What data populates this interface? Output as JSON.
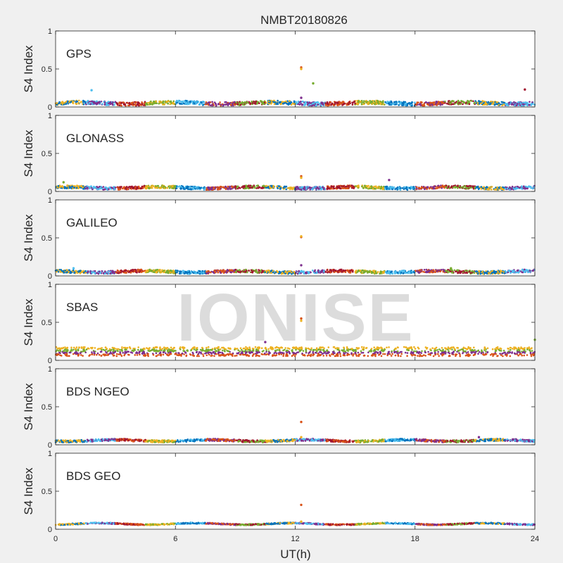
{
  "figure": {
    "title": "NMBT20180826",
    "watermark": "IONISE",
    "xlabel": "UT(h)",
    "xticks": [
      0,
      6,
      12,
      18,
      24
    ],
    "xlim": [
      0,
      24
    ],
    "colors": [
      "#0072BD",
      "#D95319",
      "#EDB120",
      "#7E2F8E",
      "#77AC30",
      "#4DBEEE",
      "#A2142F"
    ]
  },
  "chart_data": [
    {
      "type": "scatter",
      "label": "GPS",
      "ylabel": "S4 Index",
      "ylim": [
        0,
        1
      ],
      "yticks": [
        0,
        0.5,
        1
      ],
      "ytick_labels": [
        "0",
        "0.5",
        "1"
      ],
      "baseline": 0.05,
      "noise": 0.025,
      "outliers": [
        {
          "x": 12.3,
          "y": 0.52
        },
        {
          "x": 12.3,
          "y": 0.5
        },
        {
          "x": 12.3,
          "y": 0.12
        },
        {
          "x": 12.9,
          "y": 0.31
        },
        {
          "x": 1.8,
          "y": 0.22
        },
        {
          "x": 23.5,
          "y": 0.23
        }
      ]
    },
    {
      "type": "scatter",
      "label": "GLONASS",
      "ylabel": "S4 Index",
      "ylim": [
        0,
        1
      ],
      "yticks": [
        0,
        0.5,
        1
      ],
      "ytick_labels": [
        "0",
        "0.5",
        "1"
      ],
      "baseline": 0.05,
      "noise": 0.02,
      "outliers": [
        {
          "x": 12.3,
          "y": 0.2
        },
        {
          "x": 12.3,
          "y": 0.18
        },
        {
          "x": 16.7,
          "y": 0.15
        },
        {
          "x": 0.4,
          "y": 0.12
        }
      ]
    },
    {
      "type": "scatter",
      "label": "GALILEO",
      "ylabel": "S4 Index",
      "ylim": [
        0,
        1
      ],
      "yticks": [
        0,
        0.5,
        1
      ],
      "ytick_labels": [
        "0",
        "0.5",
        "1"
      ],
      "baseline": 0.055,
      "noise": 0.02,
      "outliers": [
        {
          "x": 12.3,
          "y": 0.51
        },
        {
          "x": 12.3,
          "y": 0.52
        },
        {
          "x": 12.3,
          "y": 0.14
        },
        {
          "x": 19.8,
          "y": 0.1
        },
        {
          "x": 0.9,
          "y": 0.1
        }
      ]
    },
    {
      "type": "scatter",
      "label": "SBAS",
      "ylabel": "S4 Index",
      "ylim": [
        0,
        1
      ],
      "yticks": [
        0,
        0.5,
        1
      ],
      "ytick_labels": [
        "0",
        "0.5",
        "1"
      ],
      "series_levels": [
        0.07,
        0.1,
        0.13,
        0.16
      ],
      "noise": 0.015,
      "outliers": [
        {
          "x": 12.3,
          "y": 0.55
        },
        {
          "x": 12.3,
          "y": 0.52
        },
        {
          "x": 10.5,
          "y": 0.24
        },
        {
          "x": 24,
          "y": 0.27
        }
      ]
    },
    {
      "type": "scatter",
      "label": "BDS NGEO",
      "ylabel": "S4 Index",
      "ylim": [
        0,
        1
      ],
      "yticks": [
        0,
        0.5,
        1
      ],
      "ytick_labels": [
        "0",
        "0.5",
        "1"
      ],
      "baseline": 0.055,
      "noise": 0.015,
      "outliers": [
        {
          "x": 12.3,
          "y": 0.3
        },
        {
          "x": 12.3,
          "y": 0.1
        },
        {
          "x": 21.2,
          "y": 0.1
        }
      ]
    },
    {
      "type": "scatter",
      "label": "BDS GEO",
      "ylabel": "S4 Index",
      "ylim": [
        0,
        1
      ],
      "yticks": [
        0,
        0.5,
        1
      ],
      "ytick_labels": [
        "0",
        "0.5",
        "1"
      ],
      "baseline": 0.07,
      "noise": 0.008,
      "outliers": [
        {
          "x": 12.3,
          "y": 0.32
        },
        {
          "x": 12.3,
          "y": 0.1
        }
      ]
    }
  ]
}
